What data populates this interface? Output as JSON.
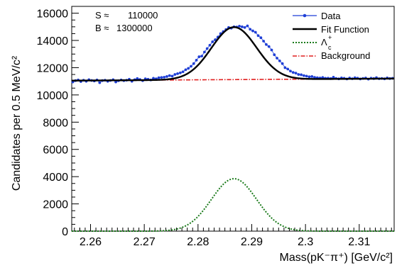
{
  "chart_data": {
    "type": "line",
    "xlabel": "Mass(pK⁻π⁺) [GeV/c²]",
    "ylabel": "Candidates per 0.5 MeV/c²",
    "xlim": [
      2.2565,
      2.3165
    ],
    "ylim": [
      0,
      16500
    ],
    "x_ticks": [
      2.26,
      2.27,
      2.28,
      2.29,
      2.3,
      2.31
    ],
    "x_tick_labels": [
      "2.26",
      "2.27",
      "2.28",
      "2.29",
      "2.3",
      "2.31"
    ],
    "y_ticks": [
      0,
      2000,
      4000,
      6000,
      8000,
      10000,
      12000,
      14000,
      16000
    ],
    "y_tick_labels": [
      "0",
      "2000",
      "4000",
      "6000",
      "8000",
      "10000",
      "12000",
      "14000",
      "16000"
    ],
    "annotations": [
      {
        "label": "S ≈",
        "value": "110000"
      },
      {
        "label": "B ≈",
        "value": "1300000"
      }
    ],
    "legend": {
      "placement": "top-right",
      "entries": [
        {
          "name": "Data",
          "color": "#1f3fd6",
          "style": "line-marker"
        },
        {
          "name": "Fit Function",
          "color": "#000000",
          "style": "solid"
        },
        {
          "name": "Λ",
          "sub": "c",
          "sup": "+",
          "color": "#1a7a1a",
          "style": "dotted"
        },
        {
          "name": "Background",
          "color": "#e01f1f",
          "style": "dash-dot"
        }
      ]
    },
    "model": {
      "signal_mean": 2.2867,
      "signal_sigma": 0.0042,
      "signal_peak": 3850,
      "background_at_xmin": 11050,
      "background_at_xmax": 11200
    },
    "series": [
      {
        "name": "Data",
        "x": [
          2.2567,
          2.2572,
          2.2577,
          2.2582,
          2.2587,
          2.2592,
          2.2597,
          2.2602,
          2.2607,
          2.2612,
          2.2617,
          2.2622,
          2.2627,
          2.2632,
          2.2637,
          2.2642,
          2.2647,
          2.2652,
          2.2657,
          2.2662,
          2.2667,
          2.2672,
          2.2677,
          2.2682,
          2.2687,
          2.2692,
          2.2697,
          2.2702,
          2.2707,
          2.2712,
          2.2717,
          2.2722,
          2.2727,
          2.2732,
          2.2737,
          2.2742,
          2.2747,
          2.2752,
          2.2757,
          2.2762,
          2.2767,
          2.2772,
          2.2777,
          2.2782,
          2.2787,
          2.2792,
          2.2797,
          2.2802,
          2.2807,
          2.2812,
          2.2817,
          2.2822,
          2.2827,
          2.2832,
          2.2837,
          2.2842,
          2.2847,
          2.2852,
          2.2857,
          2.2862,
          2.2867,
          2.2872,
          2.2877,
          2.2882,
          2.2887,
          2.2892,
          2.2897,
          2.2902,
          2.2907,
          2.2912,
          2.2917,
          2.2922,
          2.2927,
          2.2932,
          2.2937,
          2.2942,
          2.2947,
          2.2952,
          2.2957,
          2.2962,
          2.2967,
          2.2972,
          2.2977,
          2.2982,
          2.2987,
          2.2992,
          2.2997,
          2.3002,
          2.3007,
          2.3012,
          2.3017,
          2.3022,
          2.3027,
          2.3032,
          2.3037,
          2.3042,
          2.3047,
          2.3052,
          2.3057,
          2.3062,
          2.3067,
          2.3072,
          2.3077,
          2.3082,
          2.3087,
          2.3092,
          2.3097,
          2.3102,
          2.3107,
          2.3112,
          2.3117,
          2.3122,
          2.3127,
          2.3132,
          2.3137,
          2.3142,
          2.3147,
          2.3152,
          2.3157,
          2.3162
        ],
        "values": [
          10950,
          11050,
          11100,
          10980,
          11080,
          11000,
          11120,
          11060,
          11020,
          11100,
          10900,
          11050,
          11080,
          11000,
          11060,
          11120,
          10950,
          11040,
          11100,
          11050,
          11080,
          11150,
          11000,
          11120,
          11200,
          11130,
          11050,
          11180,
          11150,
          11100,
          11220,
          11180,
          11260,
          11280,
          11300,
          11350,
          11420,
          11380,
          11500,
          11560,
          11620,
          11700,
          11850,
          11950,
          12100,
          12300,
          12550,
          12800,
          12850,
          13150,
          13400,
          13650,
          13900,
          14050,
          14250,
          14500,
          14650,
          14800,
          14950,
          14900,
          15000,
          14980,
          15050,
          15000,
          14950,
          15070,
          14820,
          14700,
          14600,
          14350,
          14200,
          13950,
          13700,
          13550,
          13300,
          12950,
          12700,
          12500,
          12300,
          12000,
          11900,
          11750,
          11650,
          11600,
          11500,
          11480,
          11420,
          11380,
          11330,
          11350,
          11290,
          11260,
          11240,
          11280,
          11220,
          11230,
          11200,
          11300,
          11210,
          11180,
          11250,
          11220,
          11170,
          11240,
          11190,
          11260,
          11230,
          11170,
          11210,
          11240,
          11160,
          11230,
          11200,
          11270,
          11190,
          11210,
          11180,
          11250,
          11200,
          11220
        ]
      }
    ]
  }
}
